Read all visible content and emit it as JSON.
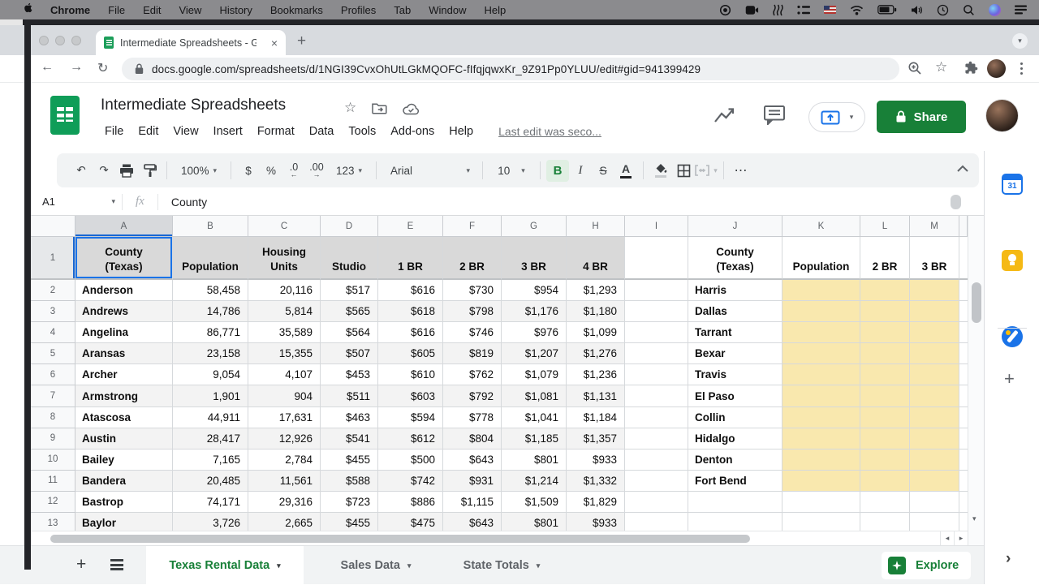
{
  "icons": {
    "caret_down": "▾",
    "close": "×",
    "new_tab": "+",
    "back": "←",
    "forward": "→",
    "reload": "↻",
    "star_outline": "☆",
    "undo": "↶",
    "redo": "↷",
    "more_h": "⋯",
    "scroll_left": "◂",
    "scroll_right": "▸",
    "scroll_down": "▾",
    "chevron_right": "›",
    "dec_arrow_left": "←",
    "dec_arrow_right": "→",
    "plus": "+"
  },
  "macos_menu_bar": {
    "items": [
      "Chrome",
      "File",
      "Edit",
      "View",
      "History",
      "Bookmarks",
      "Profiles",
      "Tab",
      "Window",
      "Help"
    ]
  },
  "browser": {
    "tab_title": "Intermediate Spreadsheets - G",
    "url": "docs.google.com/spreadsheets/d/1NGI39CvxOhUtLGkMQOFC-fIfqjqwxKr_9Z91Pp0YLUU/edit#gid=941399429"
  },
  "header": {
    "title": "Intermediate Spreadsheets",
    "menus": [
      "File",
      "Edit",
      "View",
      "Insert",
      "Format",
      "Data",
      "Tools",
      "Add-ons",
      "Help"
    ],
    "last_edit": "Last edit was seco...",
    "share_label": "Share"
  },
  "toolbar": {
    "zoom": "100%",
    "currency": "$",
    "percent": "%",
    "decrease_decimal": ".0",
    "increase_decimal": ".00",
    "more_formats": "123",
    "font": "Arial",
    "font_size": "10",
    "bold": "B",
    "italic": "I",
    "strikethrough": "S",
    "text_color": "A",
    "more": "⋯"
  },
  "formula_bar": {
    "cell_ref": "A1",
    "fx_label": "fx",
    "value": "County"
  },
  "grid": {
    "column_letters": [
      "A",
      "B",
      "C",
      "D",
      "E",
      "F",
      "G",
      "H",
      "I",
      "J",
      "K",
      "L",
      "M"
    ],
    "header_row": {
      "row_number": "1",
      "A": "County\n(Texas)",
      "B": "Population",
      "C": "Housing\nUnits",
      "D": "Studio",
      "E": "1 BR",
      "F": "2 BR",
      "G": "3 BR",
      "H": "4 BR",
      "I": "",
      "J": "County\n(Texas)",
      "K": "Population",
      "L": "2 BR",
      "M": "3 BR"
    },
    "rows": [
      {
        "n": "2",
        "county": "Anderson",
        "population": "58,458",
        "housing_units": "20,116",
        "studio": "$517",
        "br1": "$616",
        "br2": "$730",
        "br3": "$954",
        "br4": "$1,293",
        "county2": "Harris"
      },
      {
        "n": "3",
        "county": "Andrews",
        "population": "14,786",
        "housing_units": "5,814",
        "studio": "$565",
        "br1": "$618",
        "br2": "$798",
        "br3": "$1,176",
        "br4": "$1,180",
        "county2": "Dallas"
      },
      {
        "n": "4",
        "county": "Angelina",
        "population": "86,771",
        "housing_units": "35,589",
        "studio": "$564",
        "br1": "$616",
        "br2": "$746",
        "br3": "$976",
        "br4": "$1,099",
        "county2": "Tarrant"
      },
      {
        "n": "5",
        "county": "Aransas",
        "population": "23,158",
        "housing_units": "15,355",
        "studio": "$507",
        "br1": "$605",
        "br2": "$819",
        "br3": "$1,207",
        "br4": "$1,276",
        "county2": "Bexar"
      },
      {
        "n": "6",
        "county": "Archer",
        "population": "9,054",
        "housing_units": "4,107",
        "studio": "$453",
        "br1": "$610",
        "br2": "$762",
        "br3": "$1,079",
        "br4": "$1,236",
        "county2": "Travis"
      },
      {
        "n": "7",
        "county": "Armstrong",
        "population": "1,901",
        "housing_units": "904",
        "studio": "$511",
        "br1": "$603",
        "br2": "$792",
        "br3": "$1,081",
        "br4": "$1,131",
        "county2": "El Paso"
      },
      {
        "n": "8",
        "county": "Atascosa",
        "population": "44,911",
        "housing_units": "17,631",
        "studio": "$463",
        "br1": "$594",
        "br2": "$778",
        "br3": "$1,041",
        "br4": "$1,184",
        "county2": "Collin"
      },
      {
        "n": "9",
        "county": "Austin",
        "population": "28,417",
        "housing_units": "12,926",
        "studio": "$541",
        "br1": "$612",
        "br2": "$804",
        "br3": "$1,185",
        "br4": "$1,357",
        "county2": "Hidalgo"
      },
      {
        "n": "10",
        "county": "Bailey",
        "population": "7,165",
        "housing_units": "2,784",
        "studio": "$455",
        "br1": "$500",
        "br2": "$643",
        "br3": "$801",
        "br4": "$933",
        "county2": "Denton"
      },
      {
        "n": "11",
        "county": "Bandera",
        "population": "20,485",
        "housing_units": "11,561",
        "studio": "$588",
        "br1": "$742",
        "br2": "$931",
        "br3": "$1,214",
        "br4": "$1,332",
        "county2": "Fort Bend"
      },
      {
        "n": "12",
        "county": "Bastrop",
        "population": "74,171",
        "housing_units": "29,316",
        "studio": "$723",
        "br1": "$886",
        "br2": "$1,115",
        "br3": "$1,509",
        "br4": "$1,829",
        "county2": ""
      },
      {
        "n": "13",
        "county": "Baylor",
        "population": "3,726",
        "housing_units": "2,665",
        "studio": "$455",
        "br1": "$475",
        "br2": "$643",
        "br3": "$801",
        "br4": "$933",
        "county2": ""
      }
    ]
  },
  "sheet_bar": {
    "tabs": [
      {
        "label": "Texas Rental Data",
        "active": true
      },
      {
        "label": "Sales Data",
        "active": false
      },
      {
        "label": "State Totals",
        "active": false
      }
    ],
    "explore_label": "Explore"
  },
  "sidebar": {
    "calendar_label": "31"
  }
}
